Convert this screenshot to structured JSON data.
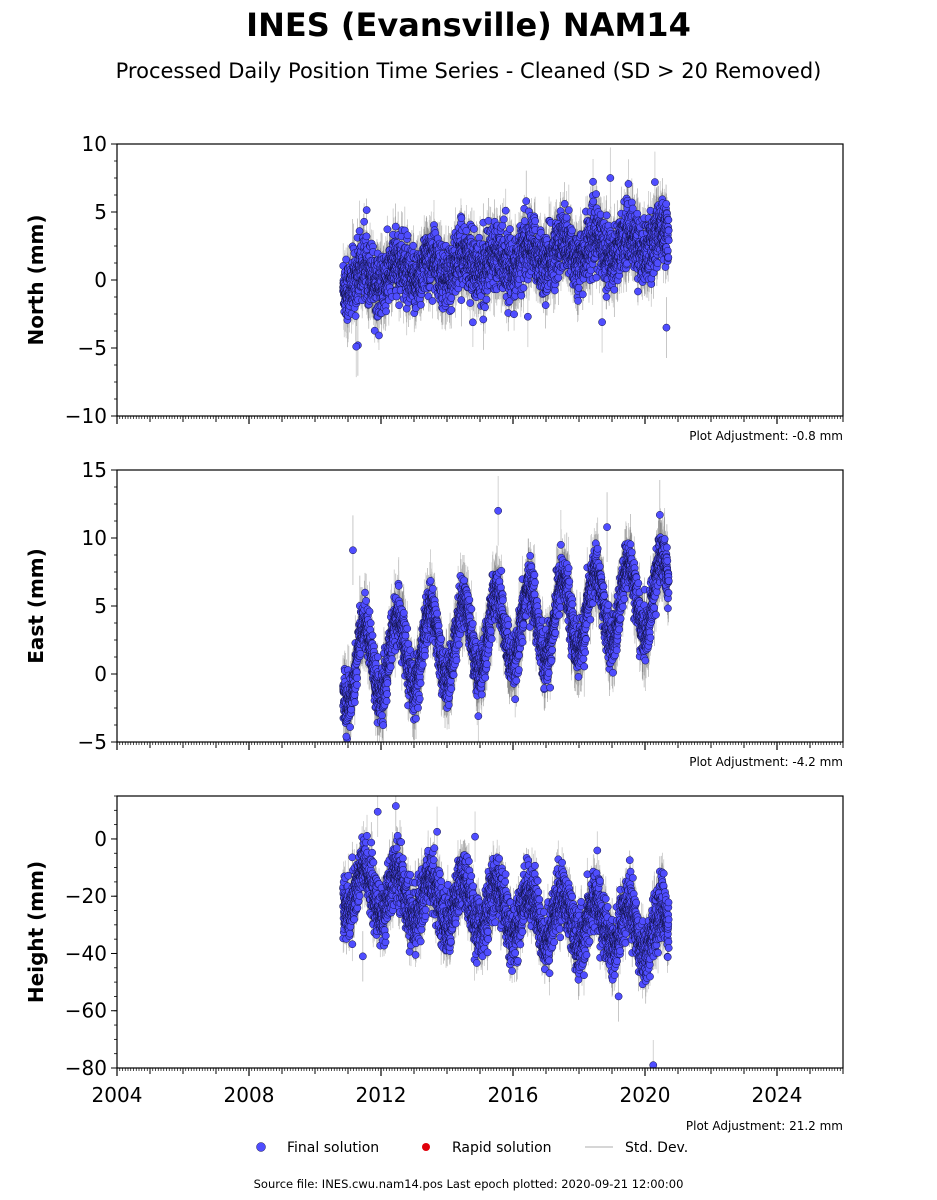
{
  "title": "INES (Evansville) NAM14",
  "subtitle": "Processed Daily Position Time Series - Cleaned (SD > 20 Removed)",
  "footer": "Source file: INES.cwu.nam14.pos  Last epoch plotted: 2020-09-21 12:00:00",
  "legend": {
    "final_label": "Final solution",
    "rapid_label": "Rapid solution",
    "std_label": "Std. Dev."
  },
  "colors": {
    "final": "#4f4dff",
    "rapid": "#e0000b",
    "stddev": "#c8c8c8",
    "stddev_dark": "#555555"
  },
  "x_axis": {
    "ticks": [
      2004,
      2008,
      2012,
      2016,
      2020,
      2024
    ],
    "range": [
      2004,
      2026
    ]
  },
  "chart_data": [
    {
      "type": "scatter",
      "ylabel": "North (mm)",
      "ylim": [
        -10,
        10
      ],
      "yticks": [
        -10,
        -5,
        0,
        5,
        10
      ],
      "adjustment": "Plot Adjustment: -0.8 mm",
      "span": [
        2010.85,
        2020.72
      ],
      "trend": [
        0.0,
        3.0
      ],
      "seasonal_amplitude": 0.8,
      "noise": 1.1,
      "sd_mean": 1.4,
      "outliers": [
        [
          2011.3,
          -4.8
        ],
        [
          2011.25,
          -4.9
        ],
        [
          2011.35,
          3.6
        ],
        [
          2016.4,
          5.8
        ],
        [
          2018.95,
          7.5
        ],
        [
          2020.3,
          7.2
        ],
        [
          2015.1,
          -2.9
        ],
        [
          2016.45,
          -2.7
        ],
        [
          2018.7,
          -3.1
        ],
        [
          2020.65,
          -3.5
        ]
      ]
    },
    {
      "type": "scatter",
      "ylabel": "East (mm)",
      "ylim": [
        -5,
        15
      ],
      "yticks": [
        -5,
        0,
        5,
        10,
        15
      ],
      "adjustment": "Plot Adjustment: -4.2 mm",
      "span": [
        2010.85,
        2020.72
      ],
      "trend": [
        0.5,
        6.0
      ],
      "seasonal_amplitude": 2.8,
      "noise": 0.9,
      "sd_mean": 1.6,
      "outliers": [
        [
          2011.15,
          9.1
        ],
        [
          2015.55,
          12.0
        ],
        [
          2017.45,
          9.5
        ],
        [
          2020.45,
          11.7
        ],
        [
          2010.95,
          -4.6
        ],
        [
          2014.95,
          -3.1
        ],
        [
          2018.85,
          10.8
        ]
      ]
    },
    {
      "type": "scatter",
      "ylabel": "Height (mm)",
      "ylim": [
        -80,
        15
      ],
      "yticks": [
        -80,
        -60,
        -40,
        -20,
        0
      ],
      "adjustment": "Plot Adjustment: 21.2 mm",
      "span": [
        2010.85,
        2020.72
      ],
      "trend": [
        -17.0,
        -33.0
      ],
      "seasonal_amplitude": 8.0,
      "noise": 5.0,
      "sd_mean": 5.5,
      "outliers": [
        [
          2012.45,
          11.5
        ],
        [
          2011.9,
          9.5
        ],
        [
          2020.25,
          -79.0
        ],
        [
          2011.45,
          -41.0
        ],
        [
          2014.85,
          0.8
        ],
        [
          2013.7,
          2.5
        ],
        [
          2019.2,
          -55.0
        ]
      ]
    }
  ]
}
